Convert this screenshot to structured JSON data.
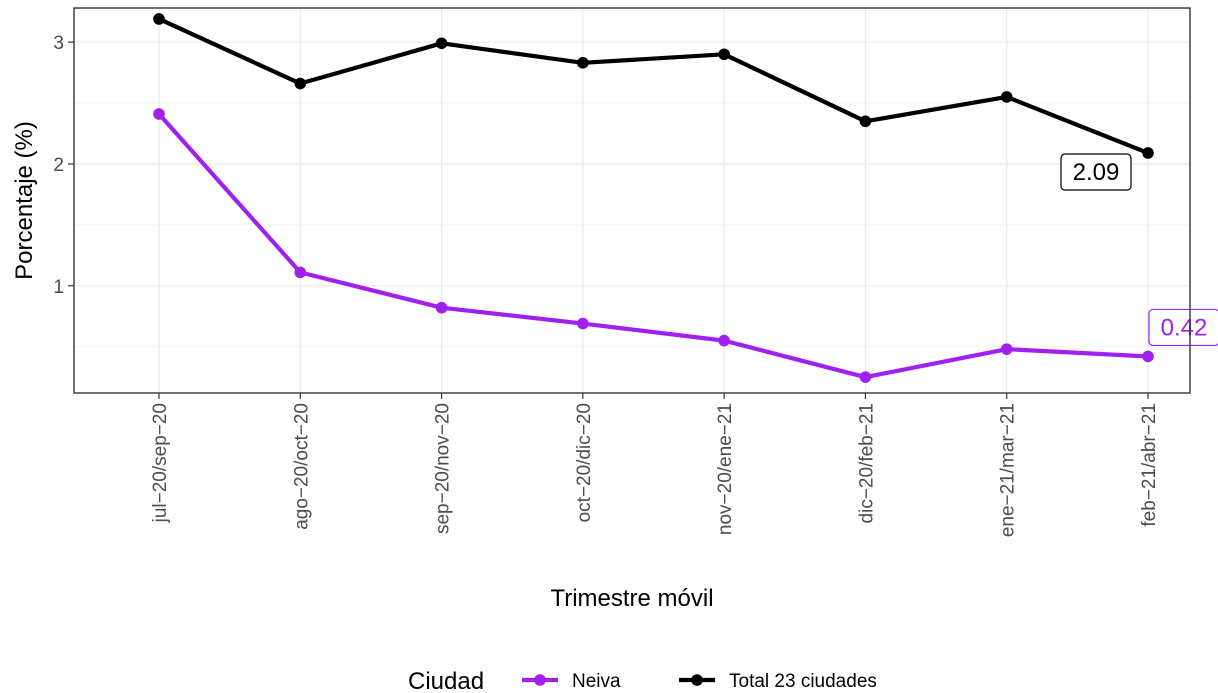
{
  "chart_data": {
    "type": "line",
    "xlabel": "Trimestre móvil",
    "ylabel": "Porcentaje (%)",
    "categories": [
      "jul−20/sep−20",
      "ago−20/oct−20",
      "sep−20/nov−20",
      "oct−20/dic−20",
      "nov−20/ene−21",
      "dic−20/feb−21",
      "ene−21/mar−21",
      "feb−21/abr−21"
    ],
    "ylim": [
      0.12,
      3.28
    ],
    "yticks": [
      1,
      2,
      3
    ],
    "grid": true,
    "legend": {
      "title": "Ciudad",
      "position": "bottom"
    },
    "series": [
      {
        "name": "Neiva",
        "color": "#a020f0",
        "values": [
          2.41,
          1.11,
          0.82,
          0.69,
          0.55,
          0.25,
          0.48,
          0.42
        ],
        "end_label": "0.42"
      },
      {
        "name": "Total 23 ciudades",
        "color": "#000000",
        "values": [
          3.19,
          2.66,
          2.99,
          2.83,
          2.9,
          2.35,
          2.55,
          2.09
        ],
        "end_label": "2.09"
      }
    ]
  }
}
